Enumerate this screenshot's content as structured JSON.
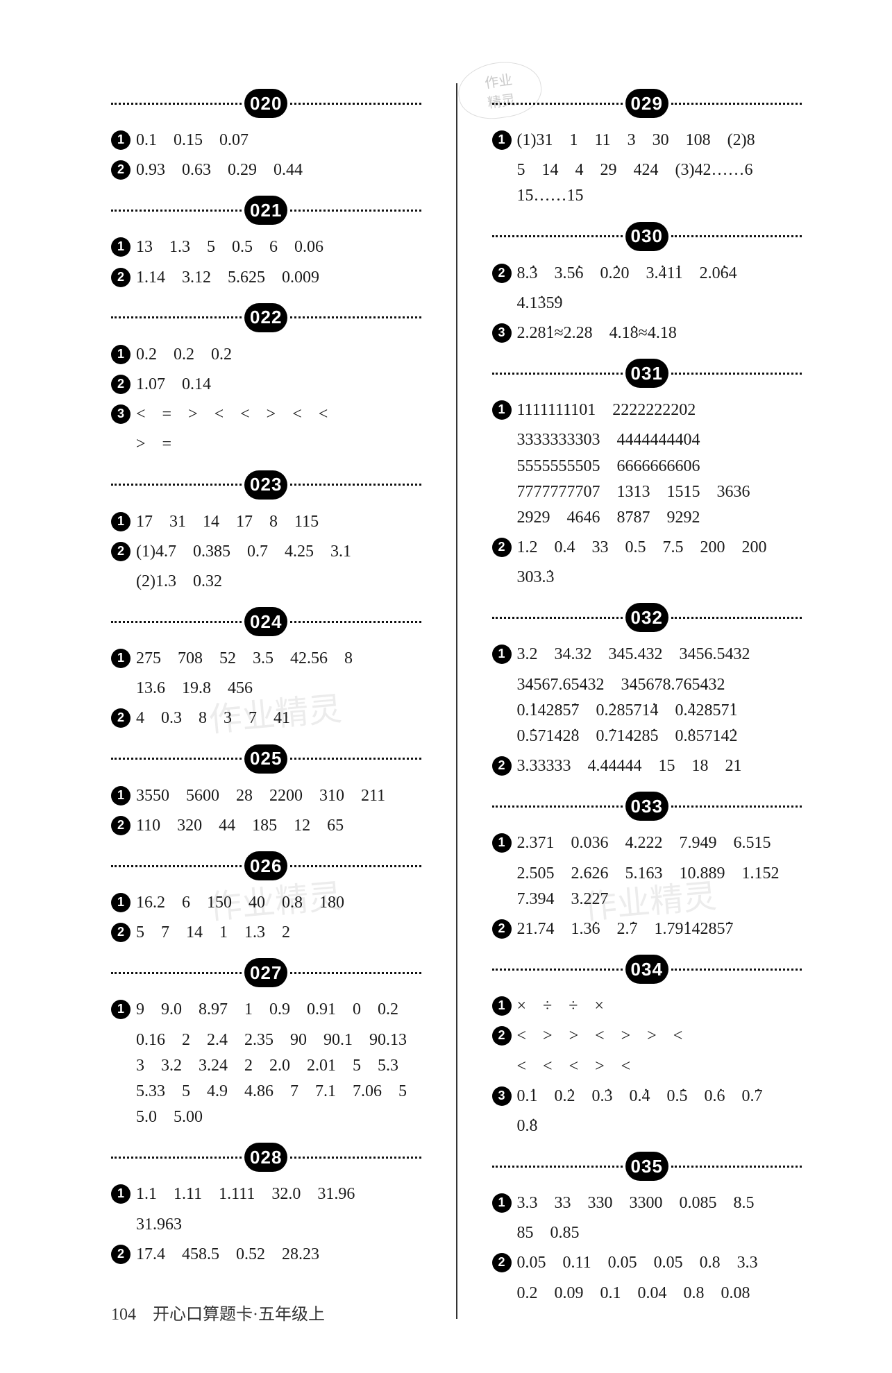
{
  "footer": {
    "page": "104",
    "title": "开心口算题卡·五年级上"
  },
  "watermark_text": "作业精灵",
  "stamp": {
    "line1": "作业",
    "line2": "精灵"
  },
  "left": {
    "s020": {
      "badge": "020",
      "items": [
        {
          "n": "1",
          "t": "0.1　0.15　0.07"
        },
        {
          "n": "2",
          "t": "0.93　0.63　0.29　0.44"
        }
      ]
    },
    "s021": {
      "badge": "021",
      "items": [
        {
          "n": "1",
          "t": "13　1.3　5　0.5　6　0.06"
        },
        {
          "n": "2",
          "t": "1.14　3.12　5.625　0.009"
        }
      ]
    },
    "s022": {
      "badge": "022",
      "items": [
        {
          "n": "1",
          "t": "0.2　0.2　0.2"
        },
        {
          "n": "2",
          "t": "1.07　0.14"
        },
        {
          "n": "3",
          "t": "<　=　>　<　<　>　<　<"
        }
      ],
      "extra3": ">　="
    },
    "s023": {
      "badge": "023",
      "items": [
        {
          "n": "1",
          "t": "17　31　14　17　8　115"
        },
        {
          "n": "2",
          "t": "(1)4.7　0.385　0.7　4.25　3.1"
        }
      ],
      "extra2": "(2)1.3　0.32"
    },
    "s024": {
      "badge": "024",
      "items": [
        {
          "n": "1",
          "t": "275　708　52　3.5　42.56　8"
        }
      ],
      "extra1": "13.6　19.8　456",
      "items2": [
        {
          "n": "2",
          "t": "4　0.3　8　3　7　41"
        }
      ]
    },
    "s025": {
      "badge": "025",
      "items": [
        {
          "n": "1",
          "t": "3550　5600　28　2200　310　211"
        },
        {
          "n": "2",
          "t": "110　320　44　185　12　65"
        }
      ]
    },
    "s026": {
      "badge": "026",
      "items": [
        {
          "n": "1",
          "t": "16.2　6　150　40　0.8　180"
        },
        {
          "n": "2",
          "t": "5　7　14　1　1.3　2"
        }
      ]
    },
    "s027": {
      "badge": "027",
      "items": [
        {
          "n": "1",
          "t": "9　9.0　8.97　1　0.9　0.91　0　0.2"
        }
      ],
      "extras": [
        "0.16　2　2.4　2.35　90　90.1　90.13",
        "3　3.2　3.24　2　2.0　2.01　5　5.3",
        "5.33　5　4.9　4.86　7　7.1　7.06　5",
        "5.0　5.00"
      ]
    },
    "s028": {
      "badge": "028",
      "items": [
        {
          "n": "1",
          "t": "1.1　1.11　1.111　32.0　31.96"
        }
      ],
      "extra1": "31.963",
      "items2": [
        {
          "n": "2",
          "t": "17.4　458.5　0.52　28.23"
        }
      ]
    }
  },
  "right": {
    "s029": {
      "badge": "029",
      "items": [
        {
          "n": "1",
          "t": "(1)31　1　11　3　30　108　(2)8"
        }
      ],
      "extras": [
        "5　14　4　29　424　(3)42……6",
        "15……15"
      ]
    },
    "s030": {
      "badge": "030",
      "item2_parts": [
        "8.",
        "3",
        "　3.5",
        "6",
        "　0.",
        "2",
        "0",
        "　3.",
        "4",
        "1",
        "1",
        "　2.0",
        "6",
        "4"
      ],
      "extra2_parts": [
        "4.1",
        "3",
        "5",
        "9"
      ],
      "item3_pre": "2.28",
      "item3_d": "1",
      "item3_mid": "≈2.28　4.1",
      "item3_d2": "8",
      "item3_post": "≈4.18"
    },
    "s031": {
      "badge": "031",
      "items": [
        {
          "n": "1",
          "t": "1111111101　2222222202"
        }
      ],
      "extras1": [
        "3333333303　4444444404",
        "5555555505　6666666606",
        "7777777707　1313　1515　3636",
        "2929　4646　8787　9292"
      ],
      "items2": [
        {
          "n": "2",
          "t": "1.2　0.4　33　0.5　7.5　200　200"
        }
      ],
      "extra2_pre": "303.",
      "extra2_d": "3"
    },
    "s032": {
      "badge": "032",
      "items": [
        {
          "n": "1",
          "t": "3.2　34.32　345.432　3456.5432"
        }
      ],
      "extras1a": [
        "34567.65432　345678.765432"
      ],
      "line3_parts": [
        "0.",
        "1",
        "4285",
        "7",
        "　0.",
        "2",
        "8571",
        "4",
        "　0.",
        "4",
        "2857",
        "1"
      ],
      "line4_parts": [
        "0.",
        "5",
        "7142",
        "8",
        "　0.",
        "7",
        "1428",
        "5",
        "　0.",
        "8",
        "5714",
        "2"
      ],
      "items2": [
        {
          "n": "2",
          "t": "3.33333　4.44444　15　18　21"
        }
      ]
    },
    "s033": {
      "badge": "033",
      "items": [
        {
          "n": "1",
          "t": "2.371　0.036　4.222　7.949　6.515"
        }
      ],
      "extras1": [
        "2.505　2.626　5.163　10.889　1.152",
        "7.394　3.227"
      ],
      "item2_pre": "21.74　1.3",
      "item2_d1": "6",
      "item2_mid": "　2.",
      "item2_d2": "7",
      "item2_mid2": "　1.79",
      "item2_d3": "1",
      "item2_mid3": "4285",
      "item2_d4": "7"
    },
    "s034": {
      "badge": "034",
      "items": [
        {
          "n": "1",
          "t": "×　÷　÷　×"
        },
        {
          "n": "2",
          "t": "<　>　>　<　>　>　<"
        }
      ],
      "extra2": "<　<　<　>　<",
      "item3_parts": [
        "0.",
        "1",
        "　0.",
        "2",
        "　0.",
        "3",
        "　0.",
        "4",
        "　0.",
        "5",
        "　0.",
        "6",
        "　0.",
        "7"
      ],
      "extra3_pre": "0.",
      "extra3_d": "8"
    },
    "s035": {
      "badge": "035",
      "items": [
        {
          "n": "1",
          "t": "3.3　33　330　3300　0.085　8.5"
        }
      ],
      "extra1": "85　0.85",
      "items2": [
        {
          "n": "2",
          "t": "0.05　0.11　0.05　0.05　0.8　3.3"
        }
      ],
      "extra2": "0.2　0.09　0.1　0.04　0.8　0.08"
    }
  }
}
